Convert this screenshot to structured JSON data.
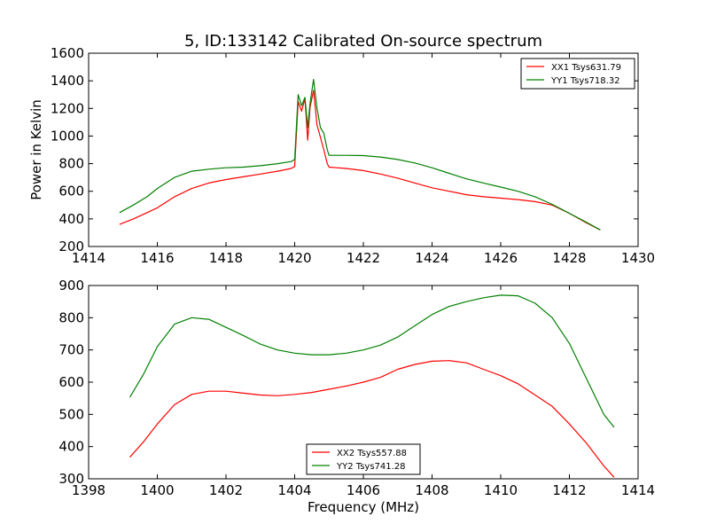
{
  "chart_data": [
    {
      "type": "line",
      "title": "5, ID:133142 Calibrated On-source spectrum",
      "xlabel": "",
      "ylabel": "Power in Kelvin",
      "xlim": [
        1414,
        1430
      ],
      "ylim": [
        200,
        1600
      ],
      "xticks": [
        1414,
        1416,
        1418,
        1420,
        1422,
        1424,
        1426,
        1428,
        1430
      ],
      "yticks": [
        200,
        400,
        600,
        800,
        1000,
        1200,
        1400,
        1600
      ],
      "legend_position": "top-right",
      "series": [
        {
          "name": "XX1 Tsys631.79",
          "color": "#ff0000",
          "points": [
            [
              1414.9,
              360
            ],
            [
              1415.3,
              400
            ],
            [
              1415.7,
              445
            ],
            [
              1416.0,
              480
            ],
            [
              1416.5,
              560
            ],
            [
              1417.0,
              620
            ],
            [
              1417.5,
              660
            ],
            [
              1418.0,
              685
            ],
            [
              1418.5,
              705
            ],
            [
              1419.0,
              725
            ],
            [
              1419.5,
              745
            ],
            [
              1419.9,
              765
            ],
            [
              1420.0,
              780
            ],
            [
              1420.1,
              1250
            ],
            [
              1420.2,
              1180
            ],
            [
              1420.3,
              1270
            ],
            [
              1420.38,
              970
            ],
            [
              1420.45,
              1210
            ],
            [
              1420.55,
              1330
            ],
            [
              1420.65,
              1080
            ],
            [
              1420.75,
              990
            ],
            [
              1420.85,
              900
            ],
            [
              1420.95,
              800
            ],
            [
              1421.0,
              775
            ],
            [
              1421.5,
              765
            ],
            [
              1422.0,
              750
            ],
            [
              1422.5,
              725
            ],
            [
              1423.0,
              695
            ],
            [
              1423.5,
              660
            ],
            [
              1424.0,
              625
            ],
            [
              1424.5,
              600
            ],
            [
              1425.0,
              575
            ],
            [
              1425.5,
              560
            ],
            [
              1426.0,
              550
            ],
            [
              1426.5,
              540
            ],
            [
              1427.0,
              525
            ],
            [
              1427.5,
              500
            ],
            [
              1428.0,
              440
            ],
            [
              1428.5,
              370
            ],
            [
              1428.9,
              320
            ]
          ]
        },
        {
          "name": "YY1 Tsys718.32",
          "color": "#008000",
          "points": [
            [
              1414.9,
              445
            ],
            [
              1415.3,
              500
            ],
            [
              1415.7,
              560
            ],
            [
              1416.0,
              620
            ],
            [
              1416.5,
              700
            ],
            [
              1417.0,
              745
            ],
            [
              1417.5,
              760
            ],
            [
              1418.0,
              770
            ],
            [
              1418.5,
              775
            ],
            [
              1419.0,
              785
            ],
            [
              1419.5,
              800
            ],
            [
              1419.9,
              815
            ],
            [
              1420.0,
              830
            ],
            [
              1420.1,
              1300
            ],
            [
              1420.2,
              1220
            ],
            [
              1420.3,
              1280
            ],
            [
              1420.38,
              1060
            ],
            [
              1420.45,
              1240
            ],
            [
              1420.55,
              1410
            ],
            [
              1420.65,
              1200
            ],
            [
              1420.75,
              1060
            ],
            [
              1420.85,
              1020
            ],
            [
              1420.95,
              900
            ],
            [
              1421.0,
              860
            ],
            [
              1421.5,
              860
            ],
            [
              1422.0,
              858
            ],
            [
              1422.5,
              848
            ],
            [
              1423.0,
              830
            ],
            [
              1423.5,
              805
            ],
            [
              1424.0,
              770
            ],
            [
              1424.5,
              730
            ],
            [
              1425.0,
              690
            ],
            [
              1425.5,
              660
            ],
            [
              1426.0,
              630
            ],
            [
              1426.5,
              600
            ],
            [
              1427.0,
              560
            ],
            [
              1427.5,
              505
            ],
            [
              1428.0,
              440
            ],
            [
              1428.5,
              375
            ],
            [
              1428.9,
              320
            ]
          ]
        }
      ]
    },
    {
      "type": "line",
      "title": "",
      "xlabel": "Frequency (MHz)",
      "ylabel": "",
      "xlim": [
        1398,
        1414
      ],
      "ylim": [
        300,
        900
      ],
      "xticks": [
        1398,
        1400,
        1402,
        1404,
        1406,
        1408,
        1410,
        1412,
        1414
      ],
      "yticks": [
        300,
        400,
        500,
        600,
        700,
        800,
        900
      ],
      "legend_position": "bottom-center",
      "series": [
        {
          "name": "XX2 Tsys557.88",
          "color": "#ff0000",
          "points": [
            [
              1399.2,
              367
            ],
            [
              1399.6,
              415
            ],
            [
              1400.0,
              470
            ],
            [
              1400.5,
              530
            ],
            [
              1401.0,
              562
            ],
            [
              1401.5,
              572
            ],
            [
              1402.0,
              572
            ],
            [
              1402.5,
              566
            ],
            [
              1403.0,
              560
            ],
            [
              1403.5,
              558
            ],
            [
              1404.0,
              562
            ],
            [
              1404.5,
              568
            ],
            [
              1405.0,
              578
            ],
            [
              1405.5,
              588
            ],
            [
              1406.0,
              600
            ],
            [
              1406.5,
              615
            ],
            [
              1407.0,
              640
            ],
            [
              1407.5,
              655
            ],
            [
              1408.0,
              665
            ],
            [
              1408.5,
              667
            ],
            [
              1409.0,
              660
            ],
            [
              1409.5,
              640
            ],
            [
              1410.0,
              620
            ],
            [
              1410.5,
              595
            ],
            [
              1411.0,
              560
            ],
            [
              1411.5,
              525
            ],
            [
              1412.0,
              470
            ],
            [
              1412.5,
              410
            ],
            [
              1413.0,
              340
            ],
            [
              1413.3,
              305
            ]
          ]
        },
        {
          "name": "YY2 Tsys741.28",
          "color": "#008000",
          "points": [
            [
              1399.2,
              553
            ],
            [
              1399.6,
              625
            ],
            [
              1400.0,
              710
            ],
            [
              1400.5,
              780
            ],
            [
              1401.0,
              800
            ],
            [
              1401.5,
              795
            ],
            [
              1402.0,
              770
            ],
            [
              1402.5,
              745
            ],
            [
              1403.0,
              718
            ],
            [
              1403.5,
              700
            ],
            [
              1404.0,
              690
            ],
            [
              1404.5,
              685
            ],
            [
              1405.0,
              685
            ],
            [
              1405.5,
              690
            ],
            [
              1406.0,
              700
            ],
            [
              1406.5,
              715
            ],
            [
              1407.0,
              740
            ],
            [
              1407.5,
              775
            ],
            [
              1408.0,
              810
            ],
            [
              1408.5,
              835
            ],
            [
              1409.0,
              850
            ],
            [
              1409.5,
              862
            ],
            [
              1410.0,
              870
            ],
            [
              1410.5,
              868
            ],
            [
              1411.0,
              845
            ],
            [
              1411.5,
              800
            ],
            [
              1412.0,
              720
            ],
            [
              1412.5,
              610
            ],
            [
              1413.0,
              500
            ],
            [
              1413.3,
              460
            ]
          ]
        }
      ]
    }
  ]
}
